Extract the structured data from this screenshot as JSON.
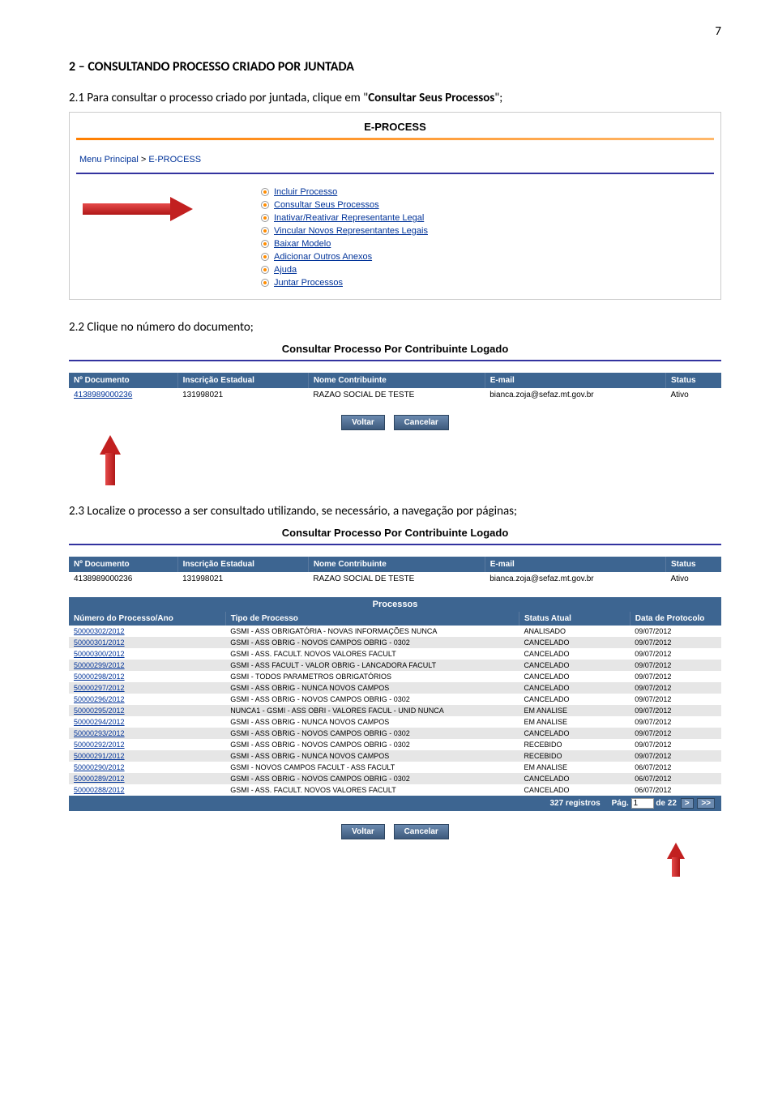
{
  "page_number": "7",
  "heading": "2 – CONSULTANDO PROCESSO CRIADO POR JUNTADA",
  "step1": {
    "prefix": "2.1 Para consultar o processo criado por juntada, clique em \"",
    "bold": "Consultar Seus Processos",
    "suffix": "\";"
  },
  "ss1": {
    "title": "E-PROCESS",
    "breadcrumb_root": "Menu Principal",
    "breadcrumb_sep": " > ",
    "breadcrumb_leaf": "E-PROCESS",
    "menu": [
      "Incluir Processo",
      "Consultar Seus Processos",
      "Inativar/Reativar Representante Legal",
      "Vincular Novos Representantes Legais",
      "Baixar Modelo",
      "Adicionar Outros Anexos",
      "Ajuda",
      "Juntar Processos"
    ]
  },
  "step2": "2.2 Clique no número do documento;",
  "ss2": {
    "title": "Consultar Processo Por Contribuinte Logado",
    "headers": [
      "Nº Documento",
      "Inscrição Estadual",
      "Nome Contribuinte",
      "E-mail",
      "Status"
    ],
    "row": [
      "4138989000236",
      "131998021",
      "RAZAO SOCIAL DE TESTE",
      "bianca.zoja@sefaz.mt.gov.br",
      "Ativo"
    ],
    "btn_voltar": "Voltar",
    "btn_cancelar": "Cancelar"
  },
  "step3": "2.3 Localize o processo a ser consultado utilizando, se necessário, a navegação por páginas;",
  "ss3": {
    "title": "Consultar Processo Por Contribuinte Logado",
    "headers": [
      "Nº Documento",
      "Inscrição Estadual",
      "Nome Contribuinte",
      "E-mail",
      "Status"
    ],
    "row": [
      "4138989000236",
      "131998021",
      "RAZAO SOCIAL DE TESTE",
      "bianca.zoja@sefaz.mt.gov.br",
      "Ativo"
    ],
    "proc_title": "Processos",
    "proc_headers": [
      "Número do Processo/Ano",
      "Tipo de Processo",
      "Status Atual",
      "Data de Protocolo"
    ],
    "proc_rows": [
      [
        "50000302/2012",
        "GSMI - ASS OBRIGATÓRIA - NOVAS INFORMAÇÕES NUNCA",
        "ANALISADO",
        "09/07/2012"
      ],
      [
        "50000301/2012",
        "GSMI - ASS OBRIG - NOVOS CAMPOS OBRIG - 0302",
        "CANCELADO",
        "09/07/2012"
      ],
      [
        "50000300/2012",
        "GSMI - ASS. FACULT. NOVOS VALORES FACULT",
        "CANCELADO",
        "09/07/2012"
      ],
      [
        "50000299/2012",
        "GSMI - ASS FACULT - VALOR OBRIG - LANCADORA FACULT",
        "CANCELADO",
        "09/07/2012"
      ],
      [
        "50000298/2012",
        "GSMI - TODOS PARAMETROS OBRIGATÓRIOS",
        "CANCELADO",
        "09/07/2012"
      ],
      [
        "50000297/2012",
        "GSMI - ASS OBRIG - NUNCA NOVOS CAMPOS",
        "CANCELADO",
        "09/07/2012"
      ],
      [
        "50000296/2012",
        "GSMI - ASS OBRIG - NOVOS CAMPOS OBRIG - 0302",
        "CANCELADO",
        "09/07/2012"
      ],
      [
        "50000295/2012",
        "NUNCA1 - GSMI - ASS OBRI - VALORES FACUL - UNID NUNCA",
        "EM ANALISE",
        "09/07/2012"
      ],
      [
        "50000294/2012",
        "GSMI - ASS OBRIG - NUNCA NOVOS CAMPOS",
        "EM ANALISE",
        "09/07/2012"
      ],
      [
        "50000293/2012",
        "GSMI - ASS OBRIG - NOVOS CAMPOS OBRIG - 0302",
        "CANCELADO",
        "09/07/2012"
      ],
      [
        "50000292/2012",
        "GSMI - ASS OBRIG - NOVOS CAMPOS OBRIG - 0302",
        "RECEBIDO",
        "09/07/2012"
      ],
      [
        "50000291/2012",
        "GSMI - ASS OBRIG - NUNCA NOVOS CAMPOS",
        "RECEBIDO",
        "09/07/2012"
      ],
      [
        "50000290/2012",
        "GSMI - NOVOS CAMPOS FACULT - ASS FACULT",
        "EM ANALISE",
        "06/07/2012"
      ],
      [
        "50000289/2012",
        "GSMI - ASS OBRIG - NOVOS CAMPOS OBRIG - 0302",
        "CANCELADO",
        "06/07/2012"
      ],
      [
        "50000288/2012",
        "GSMI - ASS. FACULT. NOVOS VALORES FACULT",
        "CANCELADO",
        "06/07/2012"
      ]
    ],
    "pager_count": "327 registros",
    "pager_pag": "Pág.",
    "pager_pagenum": "1",
    "pager_de": "de 22",
    "pager_next": ">",
    "pager_last": ">>",
    "btn_voltar": "Voltar",
    "btn_cancelar": "Cancelar"
  },
  "colors": {
    "header_bg": "#3d6591",
    "link": "#003399",
    "orange": "#ff7f00",
    "purple": "#33339f",
    "arrow": "#c22020"
  }
}
